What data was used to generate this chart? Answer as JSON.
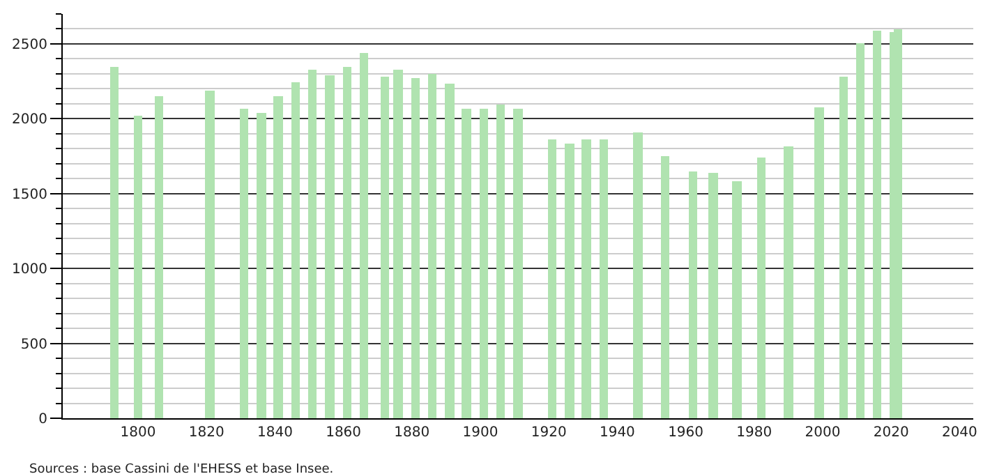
{
  "chart_data": {
    "type": "bar",
    "x": [
      1793,
      1800,
      1806,
      1821,
      1831,
      1836,
      1841,
      1846,
      1851,
      1856,
      1861,
      1866,
      1872,
      1876,
      1881,
      1886,
      1891,
      1896,
      1901,
      1906,
      1911,
      1921,
      1926,
      1931,
      1936,
      1946,
      1954,
      1962,
      1968,
      1975,
      1982,
      1990,
      1999,
      2006,
      2011,
      2016,
      2021,
      2022
    ],
    "values": [
      2350,
      2025,
      2150,
      2190,
      2070,
      2035,
      2155,
      2245,
      2325,
      2290,
      2345,
      2440,
      2280,
      2325,
      2270,
      2300,
      2235,
      2070,
      2070,
      2095,
      2070,
      1860,
      1830,
      1860,
      1860,
      1905,
      1750,
      1650,
      1635,
      1580,
      1740,
      1815,
      2080,
      2285,
      2500,
      2590,
      2580,
      2600
    ],
    "color": "#b0e3b0",
    "xlim": [
      1778,
      2044
    ],
    "xticks": [
      1800,
      1820,
      1840,
      1860,
      1880,
      1900,
      1920,
      1940,
      1960,
      1980,
      2000,
      2020,
      2040
    ],
    "ylim": [
      0,
      2700
    ],
    "yticks": [
      0,
      500,
      1000,
      1500,
      2000,
      2500
    ],
    "grid": "y",
    "annotations": [
      "Sources : base Cassini de l'EHESS et base Insee."
    ]
  }
}
